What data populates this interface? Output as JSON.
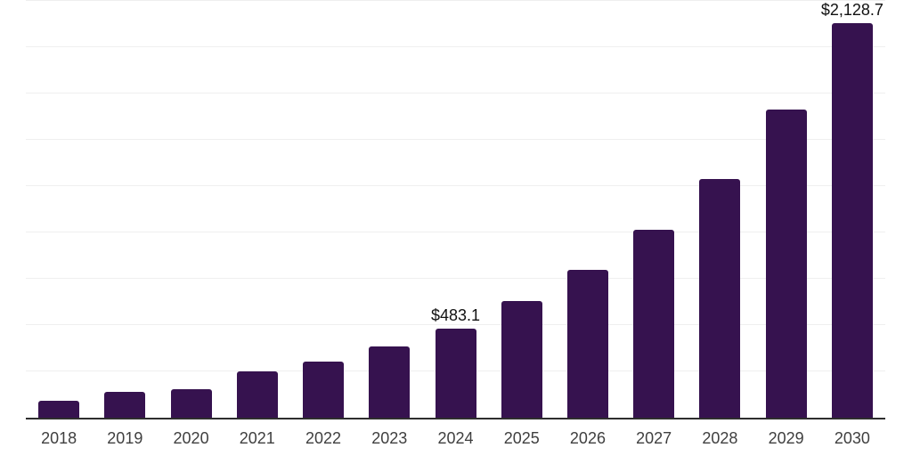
{
  "chart_data": {
    "type": "bar",
    "title": "",
    "xlabel": "",
    "ylabel": "",
    "categories": [
      "2018",
      "2019",
      "2020",
      "2021",
      "2022",
      "2023",
      "2024",
      "2025",
      "2026",
      "2027",
      "2028",
      "2029",
      "2030"
    ],
    "values": [
      93,
      139,
      153,
      248,
      305,
      383,
      483.1,
      630,
      800,
      1013,
      1289,
      1662,
      2128.7
    ],
    "data_labels": {
      "2024": "$483.1",
      "2030": "$2,128.7"
    },
    "ylim": [
      0,
      2250
    ],
    "gridline_step": 250,
    "grid": "horizontal-only",
    "legend": "none",
    "y_axis_labels_visible": false,
    "colors": {
      "bar": "#36124f",
      "gridline": "#efefef",
      "axis_line": "#2e2e2e",
      "tick_label": "#3f3f3f",
      "data_label": "#111111",
      "background": "#ffffff"
    }
  }
}
